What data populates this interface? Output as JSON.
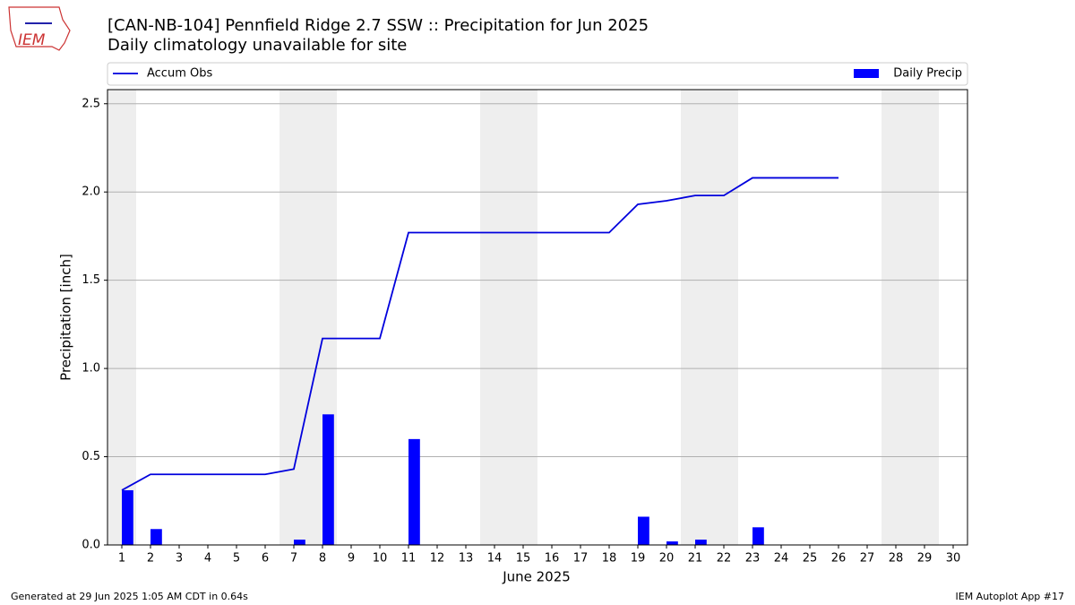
{
  "chart_data": {
    "type": "bar_line",
    "title": "[CAN-NB-104] Pennfield Ridge 2.7 SSW :: Precipitation for Jun 2025",
    "subtitle": "Daily climatology unavailable for site",
    "logo_text": "IEM",
    "x_label": "June 2025",
    "y_label": "Precipitation [inch]",
    "footer_left": "Generated at 29 Jun 2025 1:05 AM CDT in 0.64s",
    "footer_right": "IEM Autoplot App #17",
    "x": [
      1,
      2,
      3,
      4,
      5,
      6,
      7,
      8,
      9,
      10,
      11,
      12,
      13,
      14,
      15,
      16,
      17,
      18,
      19,
      20,
      21,
      22,
      23,
      24,
      25,
      26,
      27,
      28,
      29,
      30
    ],
    "xlim": [
      0.5,
      30.5
    ],
    "xticks": [
      1,
      2,
      3,
      4,
      5,
      6,
      7,
      8,
      9,
      10,
      11,
      12,
      13,
      14,
      15,
      16,
      17,
      18,
      19,
      20,
      21,
      22,
      23,
      24,
      25,
      26,
      27,
      28,
      29,
      30
    ],
    "ylim": [
      0,
      2.58
    ],
    "yticks": [
      {
        "value": 0,
        "label": "0.0"
      },
      {
        "value": 0.5,
        "label": "0.5"
      },
      {
        "value": 1,
        "label": "1.0"
      },
      {
        "value": 1.5,
        "label": "1.5"
      },
      {
        "value": 2,
        "label": "2.0"
      },
      {
        "value": 2.5,
        "label": "2.5"
      }
    ],
    "grid": true,
    "shaded_days": [
      1,
      7,
      8,
      14,
      15,
      21,
      22,
      28,
      29
    ],
    "shade_color": "#eeeeee",
    "series": [
      {
        "name": "Accum Obs",
        "type": "line",
        "color": "#0000dd",
        "values": [
          0.31,
          0.4,
          0.4,
          0.4,
          0.4,
          0.4,
          0.43,
          1.17,
          1.17,
          1.17,
          1.77,
          1.77,
          1.77,
          1.77,
          1.77,
          1.77,
          1.77,
          1.77,
          1.93,
          1.95,
          1.98,
          1.98,
          2.08,
          2.08,
          2.08,
          2.08,
          null,
          null,
          null,
          null
        ]
      },
      {
        "name": "Daily Precip",
        "type": "bar",
        "color": "#0000ff",
        "values": [
          0.31,
          0.09,
          0,
          0,
          0,
          0,
          0.03,
          0.74,
          0,
          0,
          0.6,
          0,
          0,
          0,
          0,
          0,
          0,
          0,
          0.16,
          0.02,
          0.03,
          0,
          0.1,
          0,
          0,
          0,
          null,
          null,
          null,
          null
        ]
      }
    ]
  }
}
